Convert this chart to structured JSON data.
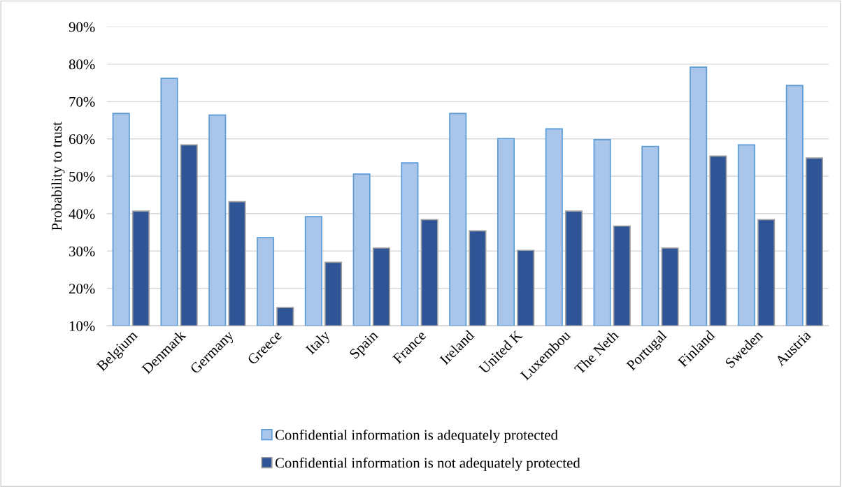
{
  "chart_data": {
    "type": "bar",
    "ylabel": "Probability to trust",
    "categories": [
      "Belgium",
      "Denmark",
      "Germany",
      "Greece",
      "Italy",
      "Spain",
      "France",
      "Ireland",
      "United K",
      "Luxembou",
      "The Neth",
      "Portugal",
      "Finland",
      "Sweden",
      "Austria"
    ],
    "series": [
      {
        "name": "Confidential information is adequately protected",
        "color": "#a9c5ea",
        "values": [
          66.8,
          76.2,
          66.4,
          33.6,
          39.2,
          50.6,
          53.6,
          66.8,
          60.1,
          62.7,
          59.8,
          58.0,
          79.2,
          58.4,
          74.3
        ]
      },
      {
        "name": "Confidential information is not adequately protected",
        "color": "#2f5597",
        "values": [
          40.7,
          58.4,
          43.2,
          14.9,
          27.0,
          30.8,
          38.4,
          35.4,
          30.2,
          40.7,
          36.7,
          30.8,
          55.4,
          38.4,
          54.9
        ]
      }
    ],
    "ylim": [
      10,
      90
    ],
    "yticks": [
      {
        "value": 10,
        "label": "10%"
      },
      {
        "value": 20,
        "label": "20%"
      },
      {
        "value": 30,
        "label": "30%"
      },
      {
        "value": 40,
        "label": "40%"
      },
      {
        "value": 50,
        "label": "50%"
      },
      {
        "value": 60,
        "label": "60%"
      },
      {
        "value": 70,
        "label": "70%"
      },
      {
        "value": 80,
        "label": "80%"
      },
      {
        "value": 90,
        "label": "90%"
      }
    ],
    "grid": "y",
    "legend": "bottom"
  }
}
